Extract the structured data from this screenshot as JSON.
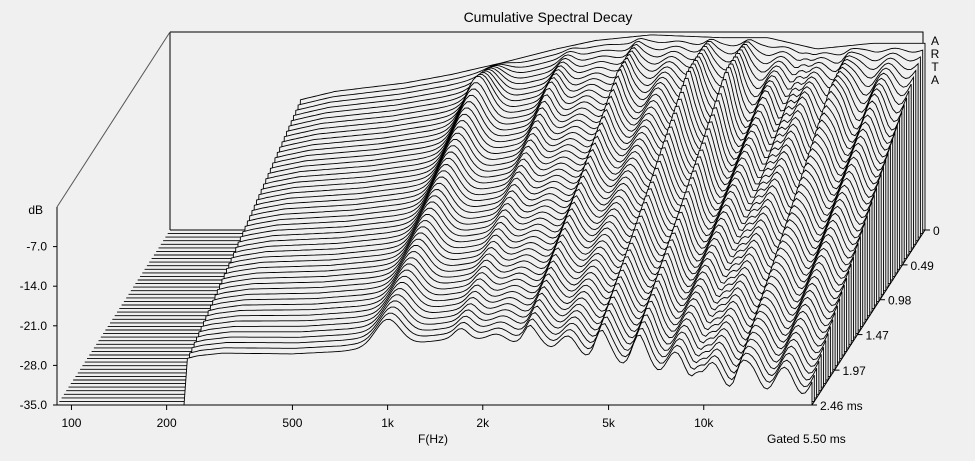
{
  "chart_data": {
    "type": "waterfall",
    "title": "Cumulative Spectral Decay",
    "xlabel": "F(Hz)",
    "ylabel": "dB",
    "zlabel": "ms",
    "footnote": "Gated 5.50 ms",
    "watermark": "ARTA",
    "x_scale": "log",
    "xlim": [
      90,
      22000
    ],
    "ylim": [
      -35,
      0
    ],
    "x_ticks": [
      {
        "value": 100,
        "label": "100"
      },
      {
        "value": 200,
        "label": "200"
      },
      {
        "value": 500,
        "label": "500"
      },
      {
        "value": 1000,
        "label": "1k"
      },
      {
        "value": 2000,
        "label": "2k"
      },
      {
        "value": 5000,
        "label": "5k"
      },
      {
        "value": 10000,
        "label": "10k"
      }
    ],
    "y_ticks": [
      {
        "value": -7,
        "label": "-7.0"
      },
      {
        "value": -14,
        "label": "-14.0"
      },
      {
        "value": -21,
        "label": "-21.0"
      },
      {
        "value": -28,
        "label": "-28.0"
      },
      {
        "value": -35,
        "label": "-35.0"
      }
    ],
    "z_ticks": [
      {
        "value": 0,
        "label": "0"
      },
      {
        "value": 0.49,
        "label": "0.49"
      },
      {
        "value": 0.98,
        "label": "0.98"
      },
      {
        "value": 1.47,
        "label": "1.47"
      },
      {
        "value": 1.97,
        "label": "1.97"
      },
      {
        "value": 2.46,
        "label": "2.46 ms"
      }
    ],
    "time_slices_count": 50,
    "time_range_ms": [
      0,
      2.46
    ],
    "initial_response": [
      {
        "f": 100,
        "db": -35
      },
      {
        "f": 230,
        "db": -35
      },
      {
        "f": 232,
        "db": -12
      },
      {
        "f": 300,
        "db": -10.5
      },
      {
        "f": 500,
        "db": -9
      },
      {
        "f": 700,
        "db": -7.5
      },
      {
        "f": 1000,
        "db": -5.5
      },
      {
        "f": 1500,
        "db": -3
      },
      {
        "f": 2000,
        "db": -1.5
      },
      {
        "f": 3000,
        "db": -0.5
      },
      {
        "f": 5000,
        "db": -1
      },
      {
        "f": 7000,
        "db": -1
      },
      {
        "f": 10000,
        "db": -3
      },
      {
        "f": 15000,
        "db": -2
      }
    ],
    "grid": false,
    "legend": "none"
  }
}
